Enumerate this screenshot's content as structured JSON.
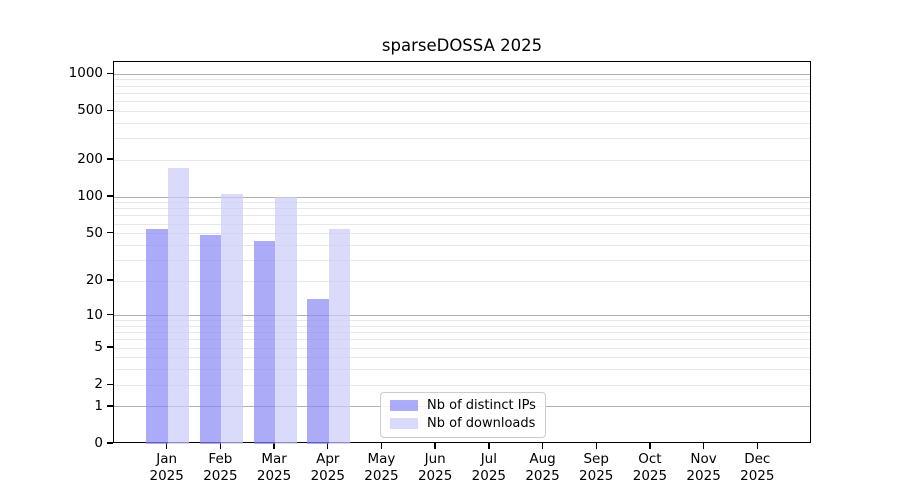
{
  "chart_data": {
    "type": "bar",
    "title": "sparseDOSSA 2025",
    "categories": [
      "Jan",
      "Feb",
      "Mar",
      "Apr",
      "May",
      "Jun",
      "Jul",
      "Aug",
      "Sep",
      "Oct",
      "Nov",
      "Dec"
    ],
    "year": "2025",
    "series": [
      {
        "name": "Nb of distinct IPs",
        "color": "#aaaaf8",
        "rgba": "rgba(136,136,243,0.7)",
        "values": [
          55,
          49,
          43,
          14,
          0,
          0,
          0,
          0,
          0,
          0,
          0,
          0
        ]
      },
      {
        "name": "Nb of downloads",
        "color": "#dadafa",
        "rgba": "rgba(203,203,248,0.7)",
        "values": [
          172,
          105,
          100,
          55,
          0,
          0,
          0,
          0,
          0,
          0,
          0,
          0
        ]
      }
    ],
    "xlabel": "",
    "ylabel": "",
    "yscale": "log1p",
    "ylim": [
      0,
      1258
    ],
    "yticks": [
      0,
      1,
      2,
      5,
      10,
      20,
      50,
      100,
      200,
      500,
      1000
    ],
    "grid": {
      "major_lines": [
        1,
        10,
        100,
        1000
      ],
      "minor_base": [
        2,
        3,
        4,
        5,
        6,
        7,
        8,
        9
      ],
      "minor_decades": [
        1,
        10,
        100
      ],
      "major_color": "#b0b0b0",
      "minor_color": "#e8e8e8"
    },
    "legend": {
      "position": "inside-bottom-center"
    }
  }
}
